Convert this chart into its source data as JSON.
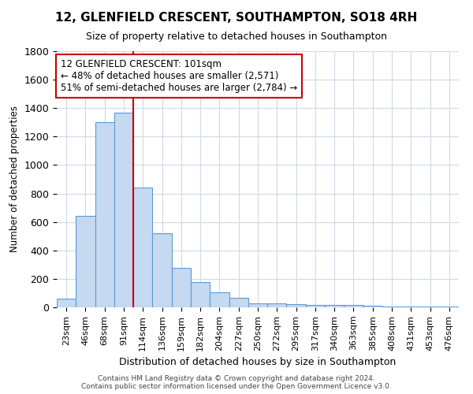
{
  "title": "12, GLENFIELD CRESCENT, SOUTHAMPTON, SO18 4RH",
  "subtitle": "Size of property relative to detached houses in Southampton",
  "xlabel": "Distribution of detached houses by size in Southampton",
  "ylabel": "Number of detached properties",
  "footer_line1": "Contains HM Land Registry data © Crown copyright and database right 2024.",
  "footer_line2": "Contains public sector information licensed under the Open Government Licence v3.0.",
  "categories": [
    "23sqm",
    "46sqm",
    "68sqm",
    "91sqm",
    "114sqm",
    "136sqm",
    "159sqm",
    "182sqm",
    "204sqm",
    "227sqm",
    "250sqm",
    "272sqm",
    "295sqm",
    "317sqm",
    "340sqm",
    "363sqm",
    "385sqm",
    "408sqm",
    "431sqm",
    "453sqm",
    "476sqm"
  ],
  "values": [
    60,
    640,
    1300,
    1370,
    840,
    520,
    275,
    175,
    105,
    65,
    30,
    30,
    20,
    15,
    15,
    15,
    10,
    5,
    5,
    5,
    5
  ],
  "bar_color": "#c5d9f0",
  "bar_edge_color": "#5b9bd5",
  "vline_x": 3.5,
  "vline_color": "#cc0000",
  "annotation_line1": "12 GLENFIELD CRESCENT: 101sqm",
  "annotation_line2": "← 48% of detached houses are smaller (2,571)",
  "annotation_line3": "51% of semi-detached houses are larger (2,784) →",
  "annotation_box_color": "white",
  "annotation_box_edge_color": "#cc0000",
  "ylim": [
    0,
    1800
  ],
  "yticks": [
    0,
    200,
    400,
    600,
    800,
    1000,
    1200,
    1400,
    1600,
    1800
  ],
  "bg_color": "#ffffff",
  "plot_bg_color": "#ffffff",
  "grid_color": "#d0d8e8"
}
